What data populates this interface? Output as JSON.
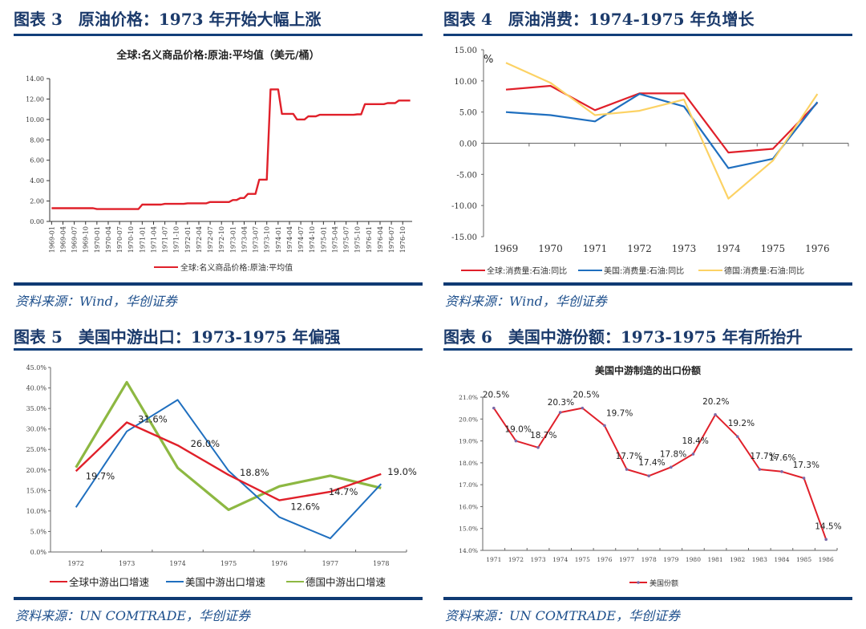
{
  "figures": [
    {
      "title": "图表 3　原油价格：1973 年开始大幅上涨",
      "source": "资料来源：Wind，华创证券"
    },
    {
      "title": "图表 4　原油消费：1974-1975 年负增长",
      "source": "资料来源：Wind，华创证券"
    },
    {
      "title": "图表 5　美国中游出口：1973-1975 年偏强",
      "source": "资料来源：UN COMTRADE，华创证券"
    },
    {
      "title": "图表 6　美国中游份额：1973-1975 年有所抬升",
      "source": "资料来源：UN COMTRADE，华创证券"
    }
  ],
  "colors": {
    "title_blue": "#1b3a6b",
    "rule_blue": "#123f7a",
    "red": "#e0202a",
    "blue": "#1f6fbf",
    "yellow": "#fcd264",
    "green": "#8db842"
  },
  "chart_data": [
    {
      "type": "line",
      "title": "全球:名义商品价格:原油:平均值（美元/桶）",
      "xlabel": "",
      "ylabel": "",
      "ylim": [
        0,
        14
      ],
      "yticks": [
        "0.00",
        "2.00",
        "4.00",
        "6.00",
        "8.00",
        "10.00",
        "12.00",
        "14.00"
      ],
      "categories": [
        "1969-01",
        "1969-02",
        "1969-03",
        "1969-04",
        "1969-05",
        "1969-06",
        "1969-07",
        "1969-08",
        "1969-09",
        "1969-10",
        "1969-11",
        "1969-12",
        "1970-01",
        "1970-02",
        "1970-03",
        "1970-04",
        "1970-05",
        "1970-06",
        "1970-07",
        "1970-08",
        "1970-09",
        "1970-10",
        "1970-11",
        "1970-12",
        "1971-01",
        "1971-02",
        "1971-03",
        "1971-04",
        "1971-05",
        "1971-06",
        "1971-07",
        "1971-08",
        "1971-09",
        "1971-10",
        "1971-11",
        "1971-12",
        "1972-01",
        "1972-02",
        "1972-03",
        "1972-04",
        "1972-05",
        "1972-06",
        "1972-07",
        "1972-08",
        "1972-09",
        "1972-10",
        "1972-11",
        "1972-12",
        "1973-01",
        "1973-02",
        "1973-03",
        "1973-04",
        "1973-05",
        "1973-06",
        "1973-07",
        "1973-08",
        "1973-09",
        "1973-10",
        "1973-11",
        "1973-12",
        "1974-01",
        "1974-02",
        "1974-03",
        "1974-04",
        "1974-05",
        "1974-06",
        "1974-07",
        "1974-08",
        "1974-09",
        "1974-10",
        "1974-11",
        "1974-12",
        "1975-01",
        "1975-02",
        "1975-03",
        "1975-04",
        "1975-05",
        "1975-06",
        "1975-07",
        "1975-08",
        "1975-09",
        "1975-10",
        "1975-11",
        "1975-12",
        "1976-01",
        "1976-02",
        "1976-03",
        "1976-04",
        "1976-05",
        "1976-06",
        "1976-07",
        "1976-08",
        "1976-09",
        "1976-10",
        "1976-11",
        "1976-12"
      ],
      "tick_labels": [
        "1969-01",
        "1969-04",
        "1969-07",
        "1969-10",
        "1970-01",
        "1970-04",
        "1970-07",
        "1970-10",
        "1971-01",
        "1971-04",
        "1971-07",
        "1971-10",
        "1972-01",
        "1972-04",
        "1972-07",
        "1972-10",
        "1973-01",
        "1973-04",
        "1973-07",
        "1973-10",
        "1974-01",
        "1974-04",
        "1974-07",
        "1974-10",
        "1975-01",
        "1975-04",
        "1975-07",
        "1975-10",
        "1976-01",
        "1976-04",
        "1976-07",
        "1976-10"
      ],
      "series": [
        {
          "name": "全球:名义商品价格:原油:平均值",
          "color": "#e0202a",
          "values": [
            1.3,
            1.3,
            1.3,
            1.3,
            1.3,
            1.3,
            1.3,
            1.3,
            1.3,
            1.3,
            1.3,
            1.3,
            1.21,
            1.21,
            1.21,
            1.21,
            1.21,
            1.21,
            1.21,
            1.21,
            1.21,
            1.21,
            1.21,
            1.21,
            1.65,
            1.65,
            1.65,
            1.65,
            1.65,
            1.65,
            1.72,
            1.72,
            1.72,
            1.72,
            1.72,
            1.72,
            1.78,
            1.78,
            1.78,
            1.78,
            1.78,
            1.78,
            1.9,
            1.9,
            1.9,
            1.9,
            1.9,
            1.9,
            2.1,
            2.1,
            2.3,
            2.3,
            2.7,
            2.7,
            2.7,
            4.1,
            4.1,
            4.1,
            12.95,
            12.95,
            12.95,
            10.55,
            10.55,
            10.55,
            10.55,
            10.0,
            10.0,
            10.0,
            10.3,
            10.3,
            10.3,
            10.45,
            10.45,
            10.45,
            10.45,
            10.45,
            10.45,
            10.45,
            10.45,
            10.45,
            10.45,
            10.5,
            10.5,
            11.5,
            11.5,
            11.5,
            11.5,
            11.5,
            11.5,
            11.6,
            11.6,
            11.6,
            11.85,
            11.85,
            11.85,
            11.85
          ]
        }
      ],
      "legend": "bottom"
    },
    {
      "type": "line",
      "title": "",
      "unit_label": "%",
      "ylim": [
        -15,
        15
      ],
      "yticks": [
        "15.00",
        "10.00",
        "5.00",
        "0.00",
        "-5.00",
        "-10.00",
        "-15.00"
      ],
      "categories": [
        "1969",
        "1970",
        "1971",
        "1972",
        "1973",
        "1974",
        "1975",
        "1976"
      ],
      "series": [
        {
          "name": "全球:消费量:石油:同比",
          "color": "#e0202a",
          "values": [
            8.6,
            9.2,
            5.3,
            8.0,
            8.0,
            -1.5,
            -0.9,
            6.5
          ]
        },
        {
          "name": "美国:消费量:石油:同比",
          "color": "#1f6fbf",
          "values": [
            5.0,
            4.5,
            3.5,
            7.9,
            5.9,
            -4.0,
            -2.5,
            6.6
          ]
        },
        {
          "name": "德国:消费量:石油:同比",
          "color": "#fcd264",
          "values": [
            12.9,
            9.7,
            4.5,
            5.2,
            7.0,
            -8.9,
            -2.8,
            7.9
          ]
        }
      ],
      "legend": "bottom"
    },
    {
      "type": "line",
      "title": "",
      "ylim": [
        0,
        45
      ],
      "yticks": [
        "0.0%",
        "5.0%",
        "10.0%",
        "15.0%",
        "20.0%",
        "25.0%",
        "30.0%",
        "35.0%",
        "40.0%",
        "45.0%"
      ],
      "categories": [
        "1972",
        "1973",
        "1974",
        "1975",
        "1976",
        "1977",
        "1978"
      ],
      "series": [
        {
          "name": "全球中游出口增速",
          "color": "#e0202a",
          "values": [
            19.7,
            31.6,
            26.0,
            18.8,
            12.6,
            14.7,
            19.0
          ],
          "data_labels": [
            "19.7%",
            "31.6%",
            "26.0%",
            "18.8%",
            "12.6%",
            "14.7%",
            "19.0%"
          ]
        },
        {
          "name": "美国中游出口增速",
          "color": "#1f6fbf",
          "values": [
            10.9,
            29.4,
            37.1,
            19.8,
            8.5,
            3.3,
            16.6
          ]
        },
        {
          "name": "德国中游出口增速",
          "color": "#8db842",
          "values": [
            20.6,
            41.4,
            20.5,
            10.3,
            16.0,
            18.6,
            15.6
          ]
        }
      ],
      "legend": "bottom"
    },
    {
      "type": "line",
      "title": "美国中游制造的出口份额",
      "ylim": [
        14,
        21
      ],
      "yticks": [
        "14.0%",
        "15.0%",
        "16.0%",
        "17.0%",
        "18.0%",
        "19.0%",
        "20.0%",
        "21.0%"
      ],
      "categories": [
        "1971",
        "1972",
        "1973",
        "1974",
        "1975",
        "1976",
        "1977",
        "1978",
        "1979",
        "1980",
        "1981",
        "1982",
        "1983",
        "1984",
        "1985",
        "1986"
      ],
      "series": [
        {
          "name": "美国份额",
          "color": "#e0202a",
          "values": [
            20.5,
            19.0,
            18.7,
            20.3,
            20.5,
            19.7,
            17.7,
            17.4,
            17.8,
            18.4,
            20.2,
            19.2,
            17.7,
            17.6,
            17.3,
            14.5
          ],
          "data_labels": [
            "20.5%",
            "19.0%",
            "18.7%",
            "20.3%",
            "20.5%",
            "19.7%",
            "17.7%",
            "17.4%",
            "17.8%",
            "18.4%",
            "20.2%",
            "19.2%",
            "17.7%",
            "17.6%",
            "17.3%",
            "14.5%"
          ]
        }
      ],
      "legend": "bottom"
    }
  ]
}
